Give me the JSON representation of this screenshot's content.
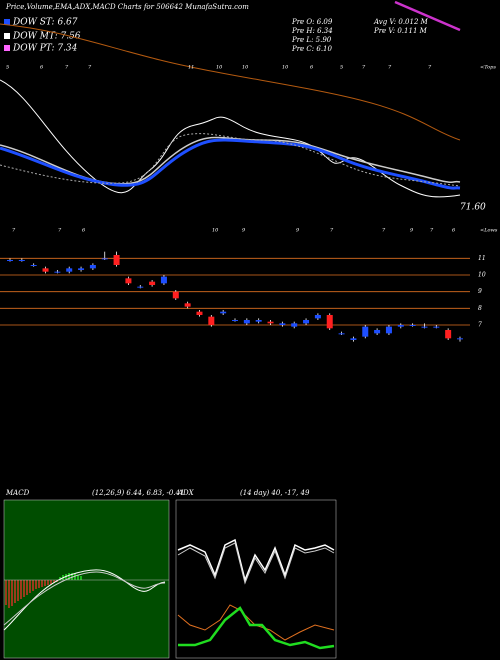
{
  "title": "Price,Volume,EMA,ADX,MACD Charts for 506642 MunafaSutra.com",
  "legend": [
    "DOW ST: 6.67",
    "DOW MT: 7.56",
    "DOW PT: 7.34"
  ],
  "info": [
    "Pre O: 6.09",
    "Pre H: 6.34",
    "Pre L: 5.90",
    "Pre C: 6.10",
    "Avg V: 0.012 M",
    "Pre V: 0.111 M"
  ],
  "ema_value": "71.60",
  "tops_label": "<Tops",
  "lows_label": "<Lows",
  "tops_numbers": [
    "5",
    "6",
    "7",
    "7",
    "11",
    "10",
    "10",
    "10",
    "6",
    "5",
    "7",
    "7",
    "7"
  ],
  "lows_numbers": [
    "7",
    "7",
    "6",
    "10",
    "9",
    "9",
    "7",
    "7",
    "9",
    "7",
    "6"
  ],
  "macd": {
    "label": "MACD",
    "params": "(12,26,9) 6.44, 6.83, -0.41"
  },
  "adx": {
    "label": "ADX",
    "params": "(14 day) 40, -17, 49"
  },
  "chart_data": {
    "type": "candlestick",
    "open": [
      10.9,
      10.9,
      10.6,
      10.4,
      10.2,
      10.2,
      10.3,
      10.4,
      11.0,
      11.2,
      9.8,
      9.3,
      9.6,
      9.5,
      9.0,
      8.3,
      7.8,
      7.5,
      7.7,
      7.3,
      7.1,
      7.2,
      7.2,
      7.0,
      6.9,
      7.1,
      7.4,
      7.6,
      6.5,
      6.1,
      6.3,
      6.5,
      6.5,
      6.9,
      7.0,
      6.9,
      6.9,
      6.7,
      6.2
    ],
    "high": [
      11.0,
      11.0,
      10.7,
      10.5,
      10.3,
      10.5,
      10.5,
      10.7,
      11.4,
      11.4,
      9.9,
      9.4,
      9.7,
      10.0,
      9.1,
      8.4,
      7.9,
      7.6,
      7.9,
      7.4,
      7.4,
      7.4,
      7.3,
      7.2,
      7.2,
      7.4,
      7.7,
      7.7,
      6.6,
      6.3,
      7.0,
      6.8,
      7.0,
      7.1,
      7.1,
      7.1,
      7.0,
      6.8,
      6.3
    ],
    "low": [
      10.8,
      10.8,
      10.5,
      10.1,
      10.1,
      10.1,
      10.2,
      10.3,
      10.9,
      10.5,
      9.4,
      9.2,
      9.3,
      9.4,
      8.5,
      8.0,
      7.5,
      6.9,
      7.6,
      7.2,
      7.0,
      7.1,
      7.0,
      6.9,
      6.8,
      7.0,
      7.3,
      6.7,
      6.4,
      6.0,
      6.2,
      6.4,
      6.4,
      6.8,
      6.9,
      6.8,
      6.8,
      6.1,
      6.0
    ],
    "close": [
      10.9,
      10.9,
      10.6,
      10.2,
      10.2,
      10.4,
      10.4,
      10.6,
      11.0,
      10.6,
      9.5,
      9.3,
      9.4,
      9.9,
      8.6,
      8.1,
      7.6,
      7.0,
      7.8,
      7.3,
      7.3,
      7.3,
      7.1,
      7.1,
      7.1,
      7.3,
      7.6,
      6.8,
      6.5,
      6.2,
      6.9,
      6.7,
      6.9,
      7.0,
      7.0,
      6.9,
      6.9,
      6.2,
      6.2
    ],
    "up_color": "#1e4fff",
    "down_color": "#ff2020",
    "grid_color": "#e07020",
    "ylim": [
      5.8,
      11.5
    ],
    "yticks": [
      7,
      8,
      9,
      10,
      11
    ]
  }
}
